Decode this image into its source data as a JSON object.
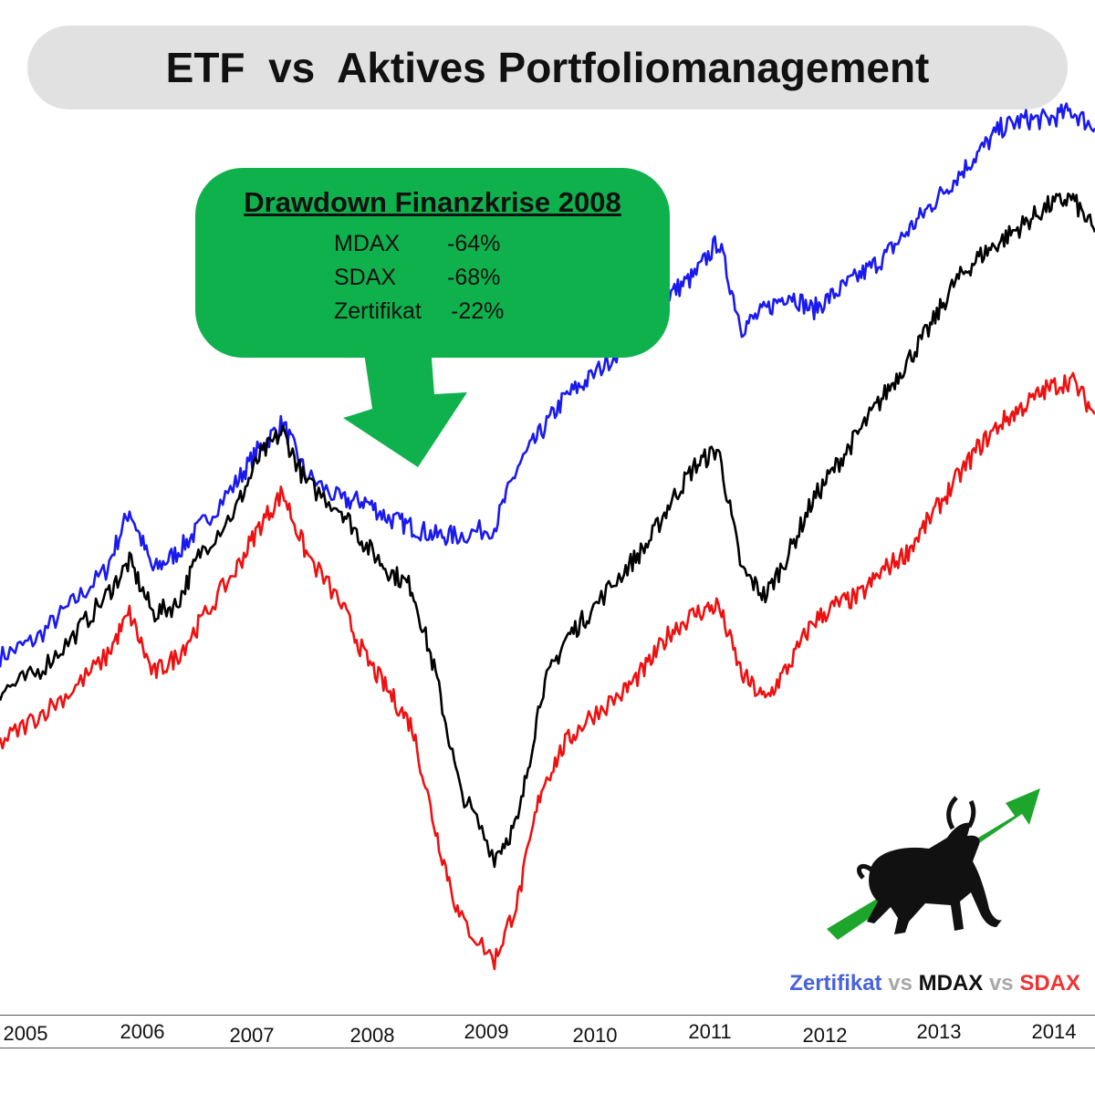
{
  "title": "ETF  vs  Aktives Portfoliomanagement",
  "callout": {
    "heading": "Drawdown Finanzkrise 2008",
    "rows": [
      {
        "name": "MDAX",
        "value": "-64%"
      },
      {
        "name": "SDAX",
        "value": "-68%"
      },
      {
        "name": "Zertifikat",
        "value": "-22%"
      }
    ],
    "color": "#0fb14d"
  },
  "legend": {
    "s1": "Zertifikat",
    "vs1": "vs",
    "s2": "MDAX",
    "vs2": "vs",
    "s3": "SDAX"
  },
  "logo_icon": "bull-with-green-arrow-icon",
  "chart_data": {
    "type": "line",
    "title": "",
    "xlabel": "",
    "ylabel": "",
    "x_ticks": [
      "2005",
      "2006",
      "2007",
      "2008",
      "2009",
      "2010",
      "2011",
      "2012",
      "2013",
      "2014"
    ],
    "x": [
      2005.0,
      2005.3,
      2005.6,
      2005.9,
      2006.1,
      2006.3,
      2006.5,
      2006.7,
      2007.0,
      2007.2,
      2007.4,
      2007.6,
      2007.9,
      2008.1,
      2008.3,
      2008.5,
      2008.7,
      2008.9,
      2009.2,
      2009.4,
      2009.6,
      2009.8,
      2010.0,
      2010.3,
      2010.5,
      2010.7,
      2010.9,
      2011.1,
      2011.3,
      2011.5,
      2011.7,
      2011.9,
      2012.1,
      2012.3,
      2012.5,
      2012.7,
      2012.9,
      2013.1,
      2013.3,
      2013.5,
      2013.7,
      2013.9,
      2014.1,
      2014.3
    ],
    "y_unit": "indexed performance (approx.)",
    "ylim": [
      0,
      100
    ],
    "grid": false,
    "legend_position": "bottom-right",
    "series": [
      {
        "name": "Zertifikat",
        "color": "#1a1aee",
        "values": [
          40,
          42,
          46,
          50,
          57,
          50,
          52,
          55,
          60,
          64,
          67,
          61,
          58,
          58,
          56,
          55,
          54,
          54,
          55,
          62,
          66,
          70,
          72,
          76,
          79,
          82,
          84,
          88,
          78,
          80,
          82,
          80,
          82,
          84,
          86,
          89,
          92,
          95,
          98,
          101,
          102,
          102,
          103,
          101
        ]
      },
      {
        "name": "MDAX",
        "color": "#000000",
        "values": [
          36,
          38,
          42,
          47,
          51,
          45,
          46,
          52,
          57,
          63,
          66,
          60,
          57,
          53,
          50,
          48,
          38,
          25,
          17,
          21,
          36,
          42,
          45,
          50,
          53,
          58,
          62,
          64,
          50,
          47,
          52,
          58,
          62,
          66,
          70,
          74,
          78,
          83,
          86,
          88,
          90,
          92,
          93,
          89
        ]
      },
      {
        "name": "SDAX",
        "color": "#ee1111",
        "values": [
          30,
          33,
          36,
          40,
          45,
          38,
          40,
          44,
          50,
          55,
          59,
          52,
          46,
          40,
          36,
          32,
          20,
          10,
          5,
          12,
          25,
          30,
          33,
          36,
          39,
          43,
          45,
          46,
          38,
          35,
          39,
          44,
          46,
          47,
          50,
          52,
          56,
          60,
          64,
          67,
          69,
          71,
          72,
          68
        ]
      }
    ]
  }
}
